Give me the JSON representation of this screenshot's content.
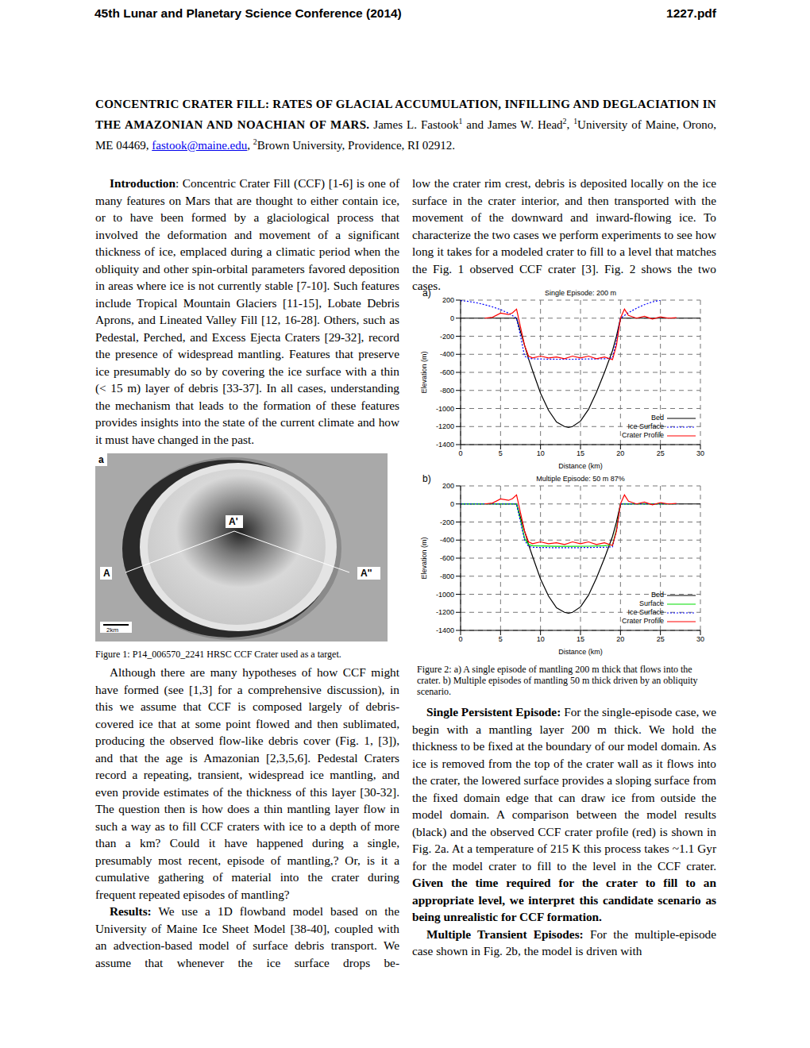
{
  "header": {
    "left": "45th Lunar and Planetary Science Conference (2014)",
    "right": "1227.pdf"
  },
  "title": "CONCENTRIC CRATER FILL: RATES OF GLACIAL ACCUMULATION, INFILLING AND DEGLACIATION IN THE AMAZONIAN AND NOACHIAN OF MARS.",
  "authors": [
    {
      "text": " James L. Fastook"
    },
    {
      "text": "1",
      "sup": true
    },
    {
      "text": " and James W. Head"
    },
    {
      "text": "2",
      "sup": true
    },
    {
      "text": ", "
    },
    {
      "text": "1",
      "sup": true
    },
    {
      "text": "University of Maine, Orono, ME 04469, "
    },
    {
      "text": "fastook@maine.edu",
      "link": true
    },
    {
      "text": ", "
    },
    {
      "text": "2",
      "sup": true
    },
    {
      "text": "Brown University, Providence, RI 02912."
    }
  ],
  "left_column_top": [
    [
      {
        "text": "Introduction",
        "bold": true
      },
      {
        "text": ": Concentric Crater Fill (CCF) [1-6] is one of many features on Mars that are thought to either contain ice, or to have been formed by a glaciological process that involved the deformation and movement of a significant thickness of ice, emplaced during a climatic period when the obliquity and other spin-orbital parameters favored deposition in areas where ice is not currently stable [7-10]. Such features include Tropical Mountain Glaciers [11-15], Lobate Debris Aprons, and Lineated Valley Fill [12, 16-28]. Others, such as Pedestal, Perched, and Excess Ejecta Craters [29-32], record the presence of widespread mantling. Features that preserve ice presumably do so by covering the ice surface with a thin (< 15 m) layer of debris [33-37]. In all cases, understanding the mechanism that leads to the formation of these features provides insights into the state of the current climate and how it must have changed in the past."
      }
    ]
  ],
  "figure1": {
    "panel": "a",
    "point_labels": [
      "A",
      "A'",
      "A''"
    ],
    "scale": "2km",
    "caption": "Figure 1: P14_006570_2241 HRSC CCF Crater used as a target."
  },
  "left_column_bottom": [
    [
      {
        "text": "Although there are many hypotheses of how CCF might have formed (see [1,3] for a comprehensive discussion), in this we assume that CCF is composed largely of debris-covered ice that at some point flowed and then sublimated, producing the observed flow-like debris cover (Fig. 1, [3]), and that the age is Amazonian [2,3,5,6]. Pedestal Craters record a repeating, transient, widespread ice mantling, and even provide estimates of the thickness of this layer [30-32]. The question then is how does a thin mantling layer flow in such a way as to fill CCF craters with ice to a depth of more than a km? Could it have happened during a single, presumably most recent, episode of mantling,? Or, is it a cumulative gathering of material into the crater during frequent repeated episodes of mantling?"
      }
    ],
    [
      {
        "text": "Results:",
        "bold": true
      },
      {
        "text": " We use a 1D flowband model based on the University of Maine Ice Sheet Model [38-40], coupled with an advection-based model of surface debris transport. We assume that whenever the ice surface drops be-"
      }
    ]
  ],
  "right_column_top": [
    [
      {
        "text": "low the crater rim crest, debris is deposited locally on the ice surface in the crater interior, and then transported with the movement of the downward and inward-flowing ice. To characterize the two cases we perform experiments to see how long it takes for a modeled crater to fill to a level that matches the Fig. 1 observed CCF crater [3]. Fig. 2 shows the two cases."
      }
    ]
  ],
  "chart_data": [
    {
      "type": "line",
      "panel": "a)",
      "title": "Single Episode: 200 m",
      "xlabel": "Distance (km)",
      "ylabel": "Elevation (m)",
      "xlim": [
        0,
        30
      ],
      "xticks": [
        0,
        5,
        10,
        15,
        20,
        25,
        30
      ],
      "ylim": [
        -1400,
        200
      ],
      "yticks": [
        -1400,
        -1200,
        -1000,
        -800,
        -600,
        -400,
        -200,
        0,
        200
      ],
      "grid": true,
      "legend": "lower right",
      "series": [
        {
          "name": "Bed",
          "color": "#000000",
          "line_style": "solid",
          "x": [
            0,
            7,
            7.5,
            8,
            8.5,
            9,
            10,
            11,
            12,
            13,
            13.5,
            14,
            15,
            16,
            17,
            18,
            19,
            19.5,
            20,
            30
          ],
          "values": [
            0,
            0,
            -150,
            -300,
            -450,
            -580,
            -830,
            -1020,
            -1150,
            -1200,
            -1210,
            -1200,
            -1140,
            -1010,
            -820,
            -600,
            -360,
            -200,
            0,
            0
          ]
        },
        {
          "name": "Ice Surface",
          "color": "#0000ff",
          "line_style": "dotted",
          "x": [
            0,
            1,
            2,
            3,
            4,
            5,
            6,
            7,
            7.5,
            8,
            8.5,
            9,
            10,
            12,
            14,
            16,
            18,
            19,
            19.5,
            20,
            21,
            22,
            23,
            24,
            25
          ],
          "values": [
            195,
            185,
            170,
            150,
            125,
            95,
            55,
            0,
            -200,
            -420,
            -445,
            -450,
            -452,
            -455,
            -455,
            -452,
            -450,
            -440,
            -250,
            0,
            60,
            110,
            150,
            180,
            200
          ]
        },
        {
          "name": "Crater Profile",
          "color": "#ff0000",
          "line_style": "solid",
          "x": [
            3,
            4,
            5,
            6,
            6.5,
            7,
            7.5,
            8,
            8.5,
            9,
            10,
            11,
            12,
            13,
            14,
            15,
            16,
            17,
            18,
            19,
            19.5,
            20,
            20.5,
            21,
            22,
            23,
            24,
            25,
            26,
            27
          ],
          "values": [
            0,
            10,
            55,
            40,
            60,
            100,
            -100,
            -300,
            -420,
            -440,
            -420,
            -440,
            -430,
            -450,
            -420,
            -440,
            -420,
            -450,
            -430,
            -460,
            -300,
            0,
            100,
            30,
            0,
            20,
            -10,
            15,
            0,
            5
          ]
        }
      ]
    },
    {
      "type": "line",
      "panel": "b)",
      "title": "Multiple Episode: 50 m 87%",
      "xlabel": "Distance (km)",
      "ylabel": "Elevation (m)",
      "xlim": [
        0,
        30
      ],
      "xticks": [
        0,
        5,
        10,
        15,
        20,
        25,
        30
      ],
      "ylim": [
        -1400,
        200
      ],
      "yticks": [
        -1400,
        -1200,
        -1000,
        -800,
        -600,
        -400,
        -200,
        0,
        200
      ],
      "grid": true,
      "legend": "lower right",
      "series": [
        {
          "name": "Bed",
          "color": "#000000",
          "line_style": "solid",
          "x": [
            0,
            7,
            7.5,
            8,
            8.5,
            9,
            10,
            11,
            12,
            13,
            13.5,
            14,
            15,
            16,
            17,
            18,
            19,
            19.5,
            20,
            30
          ],
          "values": [
            0,
            0,
            -150,
            -300,
            -450,
            -580,
            -830,
            -1020,
            -1150,
            -1200,
            -1210,
            -1200,
            -1140,
            -1010,
            -820,
            -600,
            -360,
            -200,
            0,
            0
          ]
        },
        {
          "name": "Surface",
          "color": "#00dd00",
          "line_style": "solid",
          "x": [
            0,
            7,
            7.5,
            8,
            8.5,
            9,
            10,
            12,
            14,
            16,
            18,
            19,
            19.5,
            20,
            27
          ],
          "values": [
            0,
            0,
            -180,
            -380,
            -450,
            -462,
            -465,
            -470,
            -470,
            -468,
            -462,
            -455,
            -280,
            0,
            0
          ]
        },
        {
          "name": "Ice Surface",
          "color": "#0000ff",
          "line_style": "dotted",
          "x": [
            0,
            7,
            7.5,
            8,
            8.5,
            9,
            10,
            12,
            14,
            16,
            18,
            19,
            19.5,
            20,
            27
          ],
          "values": [
            0,
            0,
            -200,
            -400,
            -470,
            -480,
            -482,
            -485,
            -485,
            -482,
            -480,
            -475,
            -300,
            0,
            0
          ]
        },
        {
          "name": "Crater Profile",
          "color": "#ff0000",
          "line_style": "solid",
          "x": [
            3,
            4,
            5,
            6,
            6.5,
            7,
            7.5,
            8,
            8.5,
            9,
            10,
            11,
            12,
            13,
            14,
            15,
            16,
            17,
            18,
            19,
            19.5,
            20,
            20.5,
            21,
            22,
            23,
            24,
            25,
            26,
            27
          ],
          "values": [
            0,
            10,
            55,
            40,
            60,
            100,
            -100,
            -300,
            -420,
            -440,
            -420,
            -440,
            -430,
            -450,
            -420,
            -440,
            -420,
            -450,
            -430,
            -460,
            -300,
            0,
            100,
            30,
            0,
            20,
            -10,
            15,
            0,
            5
          ]
        }
      ]
    }
  ],
  "figure2_caption": "Figure 2: a) A single episode of mantling 200 m thick that flows into the crater. b) Multiple episodes of mantling 50 m thick driven by an obliquity scenario.",
  "right_column_bottom": [
    [
      {
        "text": "Single Persistent Episode:",
        "bold": true
      },
      {
        "text": " For the single-episode case, we begin with a mantling layer 200 m thick. We hold the thickness to be fixed at the boundary of our model domain. As ice is removed from the top of the crater wall as it flows into the crater, the lowered surface provides a sloping surface from the fixed domain edge that can draw ice from outside the model domain. A comparison between the model results (black) and the observed CCF crater profile (red) is shown in Fig. 2a. At a temperature of 215 K this process takes ~1.1 Gyr for the model crater to fill to the level in the CCF crater. "
      },
      {
        "text": "Given the time required for the crater to fill to an appropriate level, we interpret this candidate scenario as being unrealistic for CCF formation.",
        "bold": true
      }
    ],
    [
      {
        "text": "Multiple Transient Episodes:",
        "bold": true
      },
      {
        "text": " For the multiple-episode case shown in Fig. 2b, the model is driven with"
      }
    ]
  ]
}
